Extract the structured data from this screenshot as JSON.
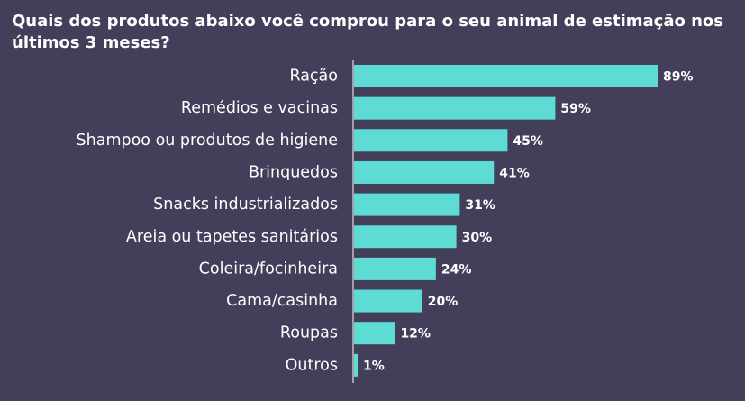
{
  "title": "Quais dos produtos abaixo você comprou para o seu animal de estimação nos últimos 3 meses?",
  "colors": {
    "background": "#433f5b",
    "bar": "#5edcd4",
    "text": "#ffffff"
  },
  "chart_data": {
    "type": "bar",
    "orientation": "horizontal",
    "title": "Quais dos produtos abaixo você comprou para o seu animal de estimação nos últimos 3 meses?",
    "categories": [
      "Ração",
      "Remédios e vacinas",
      "Shampoo ou produtos de higiene",
      "Brinquedos",
      "Snacks industrializados",
      "Areia ou tapetes sanitários",
      "Coleira/focinheira",
      "Cama/casinha",
      "Roupas",
      "Outros"
    ],
    "values": [
      89,
      59,
      45,
      41,
      31,
      30,
      24,
      20,
      12,
      1
    ],
    "value_labels": [
      "89%",
      "59%",
      "45%",
      "41%",
      "31%",
      "30%",
      "24%",
      "20%",
      "12%",
      "1%"
    ],
    "unit": "%",
    "xlim": [
      0,
      100
    ],
    "grid": false
  }
}
